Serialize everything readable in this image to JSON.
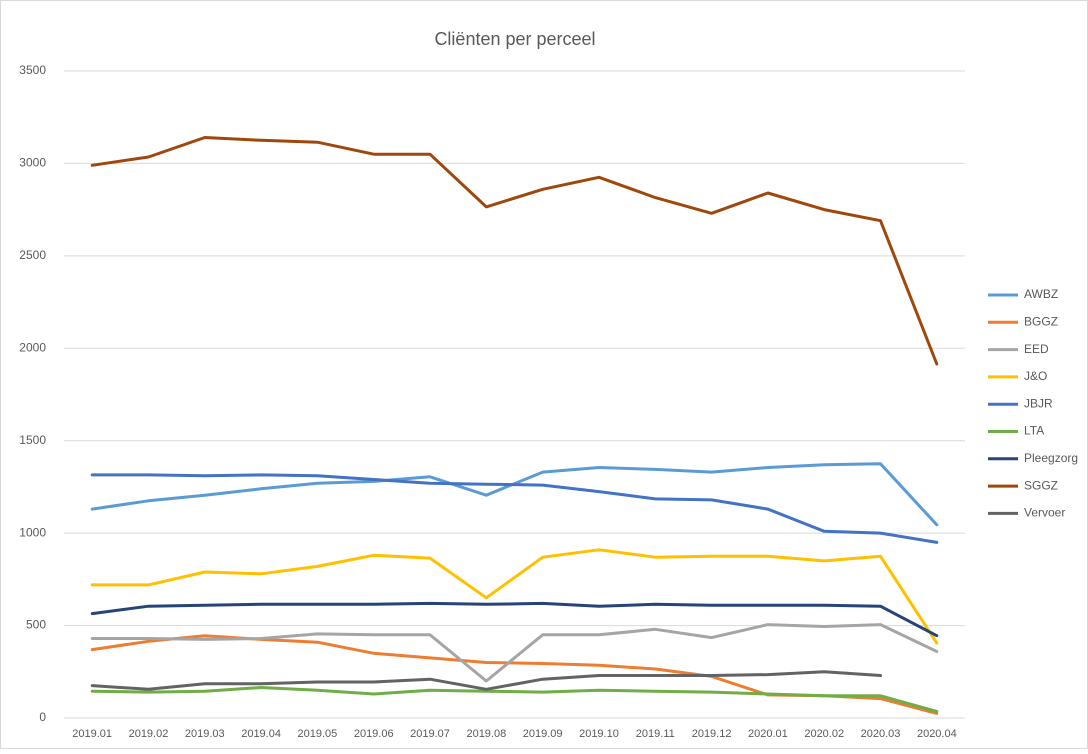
{
  "chart_data": {
    "type": "line",
    "title": "Cliënten per perceel",
    "categories": [
      "2019.01",
      "2019.02",
      "2019.03",
      "2019.04",
      "2019.05",
      "2019.06",
      "2019.07",
      "2019.08",
      "2019.09",
      "2019.10",
      "2019.11",
      "2019.12",
      "2020.01",
      "2020.02",
      "2020.03",
      "2020.04"
    ],
    "ylim": [
      0,
      3500
    ],
    "yticks": [
      0,
      500,
      1000,
      1500,
      2000,
      2500,
      3000,
      3500
    ],
    "grid": true,
    "legend": "right",
    "series": [
      {
        "name": "AWBZ",
        "color": "#5b9bd5",
        "values": [
          1130,
          1175,
          1205,
          1240,
          1270,
          1280,
          1305,
          1205,
          1330,
          1355,
          1345,
          1330,
          1355,
          1370,
          1375,
          1045
        ]
      },
      {
        "name": "BGGZ",
        "color": "#ed7d31",
        "values": [
          370,
          415,
          445,
          425,
          410,
          350,
          325,
          300,
          295,
          285,
          265,
          225,
          125,
          120,
          105,
          25
        ]
      },
      {
        "name": "EED",
        "color": "#a5a5a5",
        "values": [
          430,
          430,
          425,
          430,
          455,
          450,
          450,
          200,
          450,
          450,
          480,
          435,
          505,
          495,
          505,
          360
        ]
      },
      {
        "name": "J&O",
        "color": "#ffc000",
        "values": [
          720,
          720,
          790,
          780,
          820,
          880,
          865,
          650,
          870,
          910,
          870,
          875,
          875,
          850,
          875,
          405
        ]
      },
      {
        "name": "JBJR",
        "color": "#4472c4",
        "values": [
          1315,
          1315,
          1310,
          1315,
          1310,
          1290,
          1270,
          1265,
          1260,
          1225,
          1185,
          1180,
          1130,
          1010,
          1000,
          950
        ]
      },
      {
        "name": "LTA",
        "color": "#70ad47",
        "values": [
          145,
          140,
          145,
          165,
          150,
          130,
          150,
          145,
          140,
          150,
          145,
          140,
          130,
          120,
          120,
          35
        ]
      },
      {
        "name": "Pleegzorg",
        "color": "#264478",
        "values": [
          565,
          605,
          610,
          615,
          615,
          615,
          620,
          615,
          620,
          605,
          615,
          610,
          610,
          610,
          605,
          445
        ]
      },
      {
        "name": "SGGZ",
        "color": "#9e480e",
        "values": [
          2990,
          3035,
          3140,
          3125,
          3115,
          3050,
          3050,
          2765,
          2860,
          2925,
          2815,
          2730,
          2840,
          2750,
          2690,
          1915
        ]
      },
      {
        "name": "Vervoer",
        "color": "#636363",
        "values": [
          175,
          155,
          185,
          185,
          195,
          195,
          210,
          155,
          210,
          230,
          230,
          230,
          235,
          250,
          230,
          null
        ]
      }
    ]
  }
}
